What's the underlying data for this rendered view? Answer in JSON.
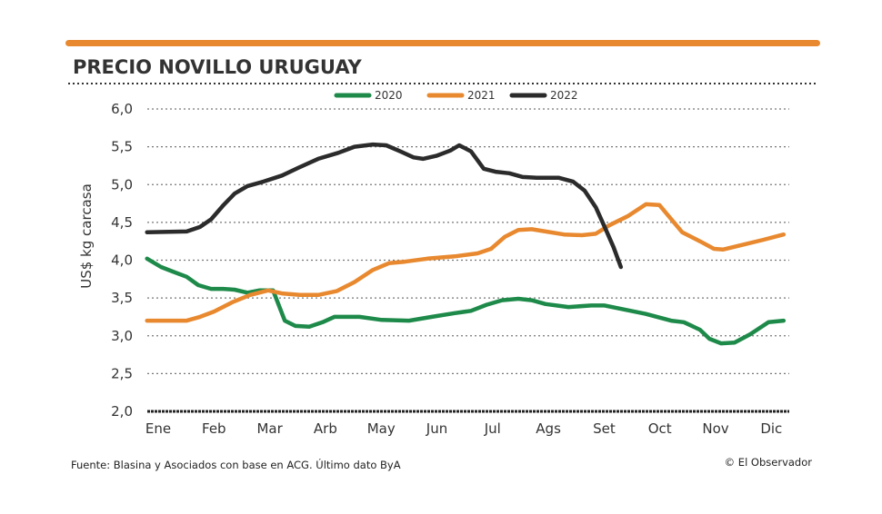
{
  "chart_data": {
    "type": "line",
    "title": "PRECIO NOVILLO URUGUAY",
    "ylabel": "US$ kg carcasa",
    "xlabel": "",
    "ylim": [
      2.0,
      6.0
    ],
    "yticks": [
      "6,0",
      "5,5",
      "5,0",
      "4,5",
      "4,0",
      "3,5",
      "3,0",
      "2,5",
      "2,0"
    ],
    "ytick_values": [
      6.0,
      5.5,
      5.0,
      4.5,
      4.0,
      3.5,
      3.0,
      2.5,
      2.0
    ],
    "categories": [
      "Ene",
      "Feb",
      "Mar",
      "Arb",
      "May",
      "Jun",
      "Jul",
      "Ags",
      "Set",
      "Oct",
      "Nov",
      "Dic"
    ],
    "x_unit": "month (Ene = 1)",
    "xlim": [
      0.8,
      12.3
    ],
    "grid": "horizontal dotted",
    "legend_position": "top-center",
    "series": [
      {
        "name": "2020",
        "color": "#1e8a4a",
        "x": [
          0.8,
          1.05,
          1.26,
          1.51,
          1.72,
          1.95,
          2.16,
          2.37,
          2.6,
          2.81,
          3.06,
          3.27,
          3.46,
          3.71,
          3.95,
          4.16,
          4.61,
          5.01,
          5.5,
          5.91,
          6.32,
          6.61,
          6.89,
          7.17,
          7.46,
          7.7,
          7.95,
          8.36,
          8.77,
          9.01,
          9.34,
          9.74,
          10.2,
          10.43,
          10.72,
          10.89,
          11.1,
          11.34,
          11.62,
          11.95,
          12.22
        ],
        "values": [
          4.02,
          3.91,
          3.85,
          3.78,
          3.67,
          3.62,
          3.62,
          3.61,
          3.57,
          3.6,
          3.6,
          3.2,
          3.13,
          3.12,
          3.18,
          3.25,
          3.25,
          3.21,
          3.2,
          3.25,
          3.3,
          3.33,
          3.41,
          3.47,
          3.49,
          3.47,
          3.42,
          3.38,
          3.4,
          3.4,
          3.35,
          3.29,
          3.2,
          3.18,
          3.08,
          2.96,
          2.9,
          2.91,
          3.02,
          3.18,
          3.2
        ]
      },
      {
        "name": "2021",
        "color": "#e8892f",
        "x": [
          0.8,
          1.51,
          1.75,
          2.0,
          2.32,
          2.65,
          2.97,
          3.22,
          3.54,
          3.87,
          4.2,
          4.52,
          4.85,
          5.14,
          5.42,
          5.83,
          6.32,
          6.73,
          6.97,
          7.22,
          7.46,
          7.7,
          7.95,
          8.28,
          8.6,
          8.85,
          9.09,
          9.42,
          9.75,
          9.99,
          10.4,
          10.72,
          10.97,
          11.13,
          11.46,
          11.86,
          12.22
        ],
        "values": [
          3.2,
          3.2,
          3.25,
          3.32,
          3.44,
          3.54,
          3.6,
          3.56,
          3.54,
          3.54,
          3.59,
          3.71,
          3.87,
          3.96,
          3.98,
          4.02,
          4.05,
          4.09,
          4.15,
          4.31,
          4.4,
          4.41,
          4.38,
          4.34,
          4.33,
          4.35,
          4.46,
          4.58,
          4.74,
          4.73,
          4.37,
          4.25,
          4.15,
          4.14,
          4.2,
          4.27,
          4.34
        ]
      },
      {
        "name": "2022",
        "color": "#2b2b2b",
        "x": [
          0.8,
          1.51,
          1.75,
          1.95,
          2.16,
          2.37,
          2.6,
          2.89,
          3.22,
          3.51,
          3.87,
          4.23,
          4.52,
          4.85,
          5.09,
          5.34,
          5.58,
          5.75,
          5.99,
          6.24,
          6.4,
          6.61,
          6.84,
          7.05,
          7.3,
          7.54,
          7.79,
          8.19,
          8.44,
          8.65,
          8.85,
          9.01,
          9.17,
          9.3
        ],
        "values": [
          4.37,
          4.38,
          4.44,
          4.54,
          4.72,
          4.88,
          4.98,
          5.04,
          5.12,
          5.22,
          5.34,
          5.42,
          5.5,
          5.53,
          5.52,
          5.44,
          5.36,
          5.34,
          5.38,
          5.45,
          5.52,
          5.44,
          5.21,
          5.17,
          5.15,
          5.1,
          5.09,
          5.09,
          5.04,
          4.92,
          4.7,
          4.44,
          4.17,
          3.91
        ]
      }
    ]
  },
  "colors": {
    "accent_bar": "#e8892f"
  },
  "footer": {
    "source": "Fuente: Blasina y Asociados con base en  ACG. Último dato ByA",
    "credit": "© El Observador"
  }
}
